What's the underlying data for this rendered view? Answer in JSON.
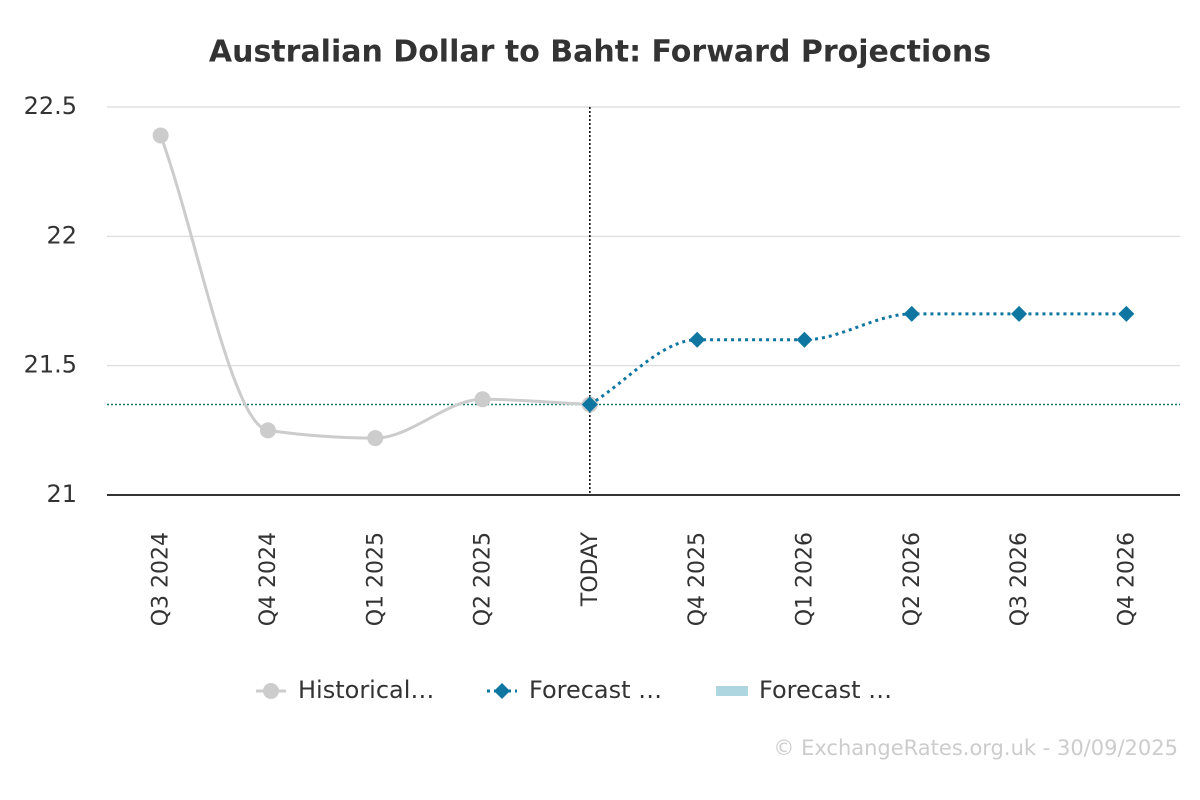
{
  "chart_data": {
    "type": "line",
    "title": "Australian Dollar to Baht: Forward Projections",
    "categories": [
      "Q3 2024",
      "Q4 2024",
      "Q1 2025",
      "Q2 2025",
      "TODAY",
      "Q4 2025",
      "Q1 2026",
      "Q2 2026",
      "Q3 2026",
      "Q4 2026"
    ],
    "series": [
      {
        "name": "Historical…",
        "color": "#cccccc",
        "marker": "circle",
        "dash": false,
        "values": [
          22.39,
          21.25,
          21.22,
          21.37,
          21.35,
          null,
          null,
          null,
          null,
          null
        ]
      },
      {
        "name": "Forecast …",
        "color": "#0e76a0",
        "marker": "diamond",
        "dash": true,
        "values": [
          null,
          null,
          null,
          null,
          21.35,
          21.6,
          21.6,
          21.7,
          21.7,
          21.7
        ]
      },
      {
        "name": "Forecast …",
        "color": "#aed6e0",
        "marker": "band"
      }
    ],
    "reference_line": {
      "value": 21.35,
      "color": "#0e7a6a"
    },
    "vline_category": "TODAY",
    "ylim": [
      21,
      22.5
    ],
    "yticks": [
      21,
      21.5,
      22,
      22.5
    ],
    "grid": true,
    "credit": "© ExchangeRates.org.uk - 30/09/2025"
  }
}
